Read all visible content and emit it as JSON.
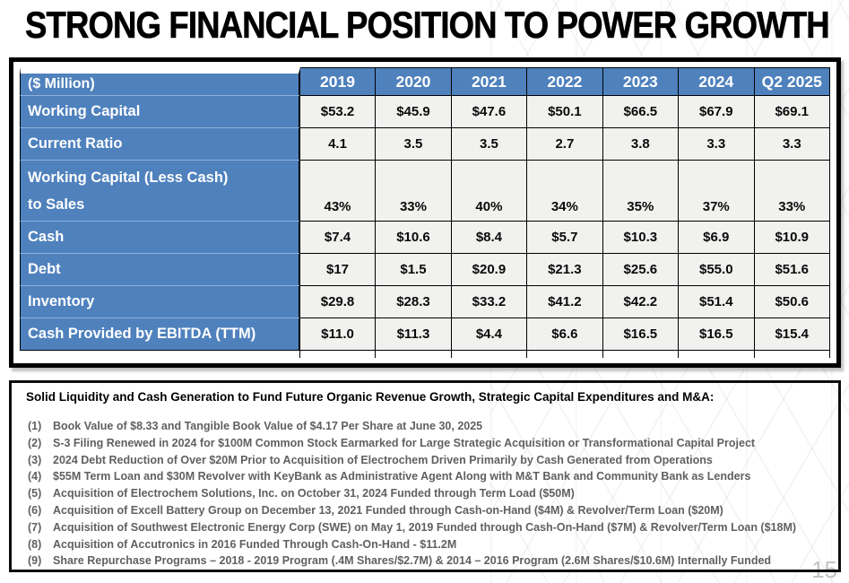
{
  "page": {
    "title": "STRONG FINANCIAL POSITION TO POWER GROWTH",
    "page_number": "15"
  },
  "colors": {
    "accent_blue": "#4f81bd",
    "cell_background": "#f1f1ef",
    "table_border": "#000000",
    "notes_text_gray": "#606060",
    "page_number_gray": "#c4c4c4"
  },
  "table": {
    "header": [
      "($ Million)",
      "2019",
      "2020",
      "2021",
      "2022",
      "2023",
      "2024",
      "Q2 2025"
    ],
    "rows": [
      {
        "label": "Working Capital",
        "values": [
          "$53.2",
          "$45.9",
          "$47.6",
          "$50.1",
          "$66.5",
          "$67.9",
          "$69.1"
        ]
      },
      {
        "label": "Current Ratio",
        "values": [
          "4.1",
          "3.5",
          "3.5",
          "2.7",
          "3.8",
          "3.3",
          "3.3"
        ]
      },
      {
        "label": "Working Capital (Less Cash)\nto Sales",
        "values": [
          "43%",
          "33%",
          "40%",
          "34%",
          "35%",
          "37%",
          "33%"
        ]
      },
      {
        "label": "Cash",
        "values": [
          "$7.4",
          "$10.6",
          "$8.4",
          "$5.7",
          "$10.3",
          "$6.9",
          "$10.9"
        ]
      },
      {
        "label": "Debt",
        "values": [
          "$17",
          "$1.5",
          "$20.9",
          "$21.3",
          "$25.6",
          "$55.0",
          "$51.6"
        ]
      },
      {
        "label": "Inventory",
        "values": [
          "$29.8",
          "$28.3",
          "$33.2",
          "$41.2",
          "$42.2",
          "$51.4",
          "$50.6"
        ]
      },
      {
        "label": "Cash Provided by EBITDA (TTM)",
        "values": [
          "$11.0",
          "$11.3",
          "$4.4",
          "$6.6",
          "$16.5",
          "$16.5",
          "$15.4"
        ]
      }
    ]
  },
  "notes": {
    "heading": "Solid Liquidity and Cash Generation to Fund Future Organic Revenue Growth, Strategic Capital Expenditures and M&A:",
    "items": [
      {
        "num": "(1)",
        "text": "Book Value of $8.33 and Tangible Book Value of $4.17 Per Share at June 30, 2025"
      },
      {
        "num": "(2)",
        "text": "S-3 Filing Renewed in 2024 for $100M Common Stock Earmarked for Large Strategic Acquisition or Transformational Capital Project"
      },
      {
        "num": "(3)",
        "text": "2024 Debt Reduction of Over $20M Prior to Acquisition of Electrochem Driven Primarily by Cash Generated from Operations"
      },
      {
        "num": "(4)",
        "text": "$55M Term Loan and $30M Revolver with KeyBank as Administrative Agent Along with M&T Bank and Community Bank as Lenders"
      },
      {
        "num": "(5)",
        "text": "Acquisition of Electrochem Solutions, Inc. on October 31, 2024 Funded through Term Load ($50M)"
      },
      {
        "num": "(6)",
        "text": "Acquisition of Excell Battery Group on December 13, 2021 Funded through Cash-on-Hand ($4M) & Revolver/Term Loan ($20M)"
      },
      {
        "num": "(7)",
        "text": "Acquisition of Southwest Electronic Energy Corp (SWE) on May 1, 2019 Funded through Cash-On-Hand ($7M) & Revolver/Term Loan ($18M)"
      },
      {
        "num": "(8)",
        "text": "Acquisition of Accutronics in 2016 Funded Through Cash-On-Hand - $11.2M"
      },
      {
        "num": "(9)",
        "text": "Share Repurchase Programs – 2018 - 2019 Program (.4M Shares/$2.7M) & 2014 – 2016 Program (2.6M Shares/$10.6M) Internally Funded"
      }
    ]
  }
}
